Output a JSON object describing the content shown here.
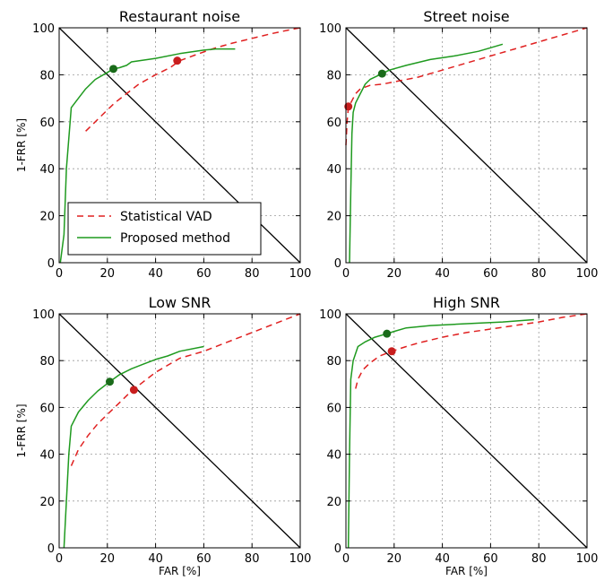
{
  "colors": {
    "statistical": "#e02020",
    "proposed": "#1f9a1f",
    "proposed_marker": "#1a6b1a",
    "statistical_marker": "#c81e1e",
    "diagonal": "#000000",
    "grid": "#9a9a9a"
  },
  "legend": {
    "location": "lower-left",
    "in_panel": 0,
    "entries": [
      "Statistical VAD",
      "Proposed method"
    ]
  },
  "chart_data": [
    {
      "type": "line",
      "title": "Restaurant noise",
      "xlabel": "",
      "ylabel": "1-FRR [%]",
      "xlim": [
        0,
        100
      ],
      "ylim": [
        0,
        100
      ],
      "xticks": [
        "0",
        "20",
        "40",
        "60",
        "80",
        "100"
      ],
      "yticks": [
        "0",
        "20",
        "40",
        "60",
        "80",
        "100"
      ],
      "grid": true,
      "series": [
        {
          "name": "Statistical VAD",
          "style": "dashed",
          "x": [
            11,
            14,
            18,
            23,
            28,
            33,
            40,
            46,
            50,
            58,
            65,
            72,
            80,
            88,
            95,
            100
          ],
          "y": [
            56,
            59,
            63,
            68,
            72,
            76,
            80,
            83,
            86,
            89,
            91.5,
            93.5,
            95.5,
            97.5,
            99,
            100
          ],
          "marker": {
            "x": 49,
            "y": 86
          }
        },
        {
          "name": "Proposed method",
          "style": "solid",
          "x": [
            0.5,
            2,
            3,
            5,
            8,
            11,
            15,
            20,
            22.5,
            25,
            28,
            30,
            40,
            50,
            60,
            65,
            73
          ],
          "y": [
            0,
            12,
            40,
            66,
            70,
            74,
            78,
            81,
            82.5,
            83,
            84,
            85.5,
            87,
            89,
            90.5,
            91,
            91
          ]
        }
      ],
      "markers": [
        {
          "series": "Proposed method",
          "x": 22.5,
          "y": 82.5
        }
      ]
    },
    {
      "type": "line",
      "title": "Street noise",
      "xlabel": "",
      "ylabel": "",
      "xlim": [
        0,
        100
      ],
      "ylim": [
        0,
        100
      ],
      "xticks": [
        "0",
        "20",
        "40",
        "60",
        "80",
        "100"
      ],
      "yticks": [
        "0",
        "20",
        "40",
        "60",
        "80",
        "100"
      ],
      "grid": true,
      "series": [
        {
          "name": "Statistical VAD",
          "style": "dashed",
          "x": [
            0,
            0.5,
            1,
            2,
            4,
            6,
            10,
            15,
            20,
            30,
            40,
            50,
            60,
            70,
            80,
            90,
            100
          ],
          "y": [
            50,
            60,
            66,
            68,
            72,
            74,
            75.5,
            76,
            77,
            79,
            82,
            85,
            88,
            91,
            94,
            97,
            100
          ],
          "marker": {
            "x": 1,
            "y": 66.5
          }
        },
        {
          "name": "Proposed method",
          "style": "solid",
          "x": [
            1.5,
            2,
            2.5,
            3,
            4,
            6,
            8,
            10,
            13,
            15,
            18,
            25,
            35,
            45,
            55,
            65
          ],
          "y": [
            0,
            30,
            55,
            64,
            68,
            72,
            76,
            78,
            79.5,
            80.5,
            82,
            84,
            86.5,
            88,
            90,
            93
          ]
        }
      ],
      "markers": [
        {
          "series": "Proposed method",
          "x": 15,
          "y": 80.5
        }
      ]
    },
    {
      "type": "line",
      "title": "Low SNR",
      "xlabel": "FAR [%]",
      "ylabel": "1-FRR [%]",
      "xlim": [
        0,
        100
      ],
      "ylim": [
        0,
        100
      ],
      "xticks": [
        "0",
        "20",
        "40",
        "60",
        "80",
        "100"
      ],
      "yticks": [
        "0",
        "20",
        "40",
        "60",
        "80",
        "100"
      ],
      "grid": true,
      "series": [
        {
          "name": "Statistical VAD",
          "style": "dashed",
          "x": [
            5,
            8,
            12,
            16,
            20,
            25,
            30,
            35,
            40,
            45,
            50,
            60,
            70,
            80,
            90,
            100
          ],
          "y": [
            35,
            42,
            48,
            53,
            57,
            62,
            67,
            71,
            75,
            78,
            81,
            84,
            88,
            92,
            96,
            100
          ],
          "marker": {
            "x": 31,
            "y": 67.5
          }
        },
        {
          "name": "Proposed method",
          "style": "solid",
          "x": [
            2,
            3,
            4,
            5,
            8,
            12,
            16,
            21,
            25,
            30,
            35,
            40,
            45,
            50,
            60
          ],
          "y": [
            0,
            20,
            40,
            52,
            58,
            63,
            67,
            71,
            74,
            76.5,
            78.5,
            80.5,
            82,
            84,
            86
          ]
        }
      ],
      "markers": [
        {
          "series": "Proposed method",
          "x": 21,
          "y": 71
        }
      ]
    },
    {
      "type": "line",
      "title": "High SNR",
      "xlabel": "FAR [%]",
      "ylabel": "",
      "xlim": [
        0,
        100
      ],
      "ylim": [
        0,
        100
      ],
      "xticks": [
        "0",
        "20",
        "40",
        "60",
        "80",
        "100"
      ],
      "yticks": [
        "0",
        "20",
        "40",
        "60",
        "80",
        "100"
      ],
      "grid": true,
      "series": [
        {
          "name": "Statistical VAD",
          "style": "dashed",
          "x": [
            4,
            5,
            7,
            10,
            14,
            19,
            25,
            30,
            40,
            50,
            60,
            70,
            80,
            90,
            100
          ],
          "y": [
            68,
            72,
            76,
            79,
            82,
            84,
            86,
            87.5,
            90,
            92,
            93.5,
            95,
            96.5,
            98.5,
            100
          ],
          "marker": {
            "x": 19,
            "y": 84
          }
        },
        {
          "name": "Proposed method",
          "style": "solid",
          "x": [
            1,
            1.5,
            2,
            3,
            5,
            8,
            12,
            17,
            20,
            25,
            35,
            45,
            55,
            65,
            78
          ],
          "y": [
            0,
            40,
            72,
            80,
            86,
            88,
            90,
            91.5,
            92.5,
            94,
            95,
            95.5,
            96,
            96.5,
            97.5
          ]
        }
      ],
      "markers": [
        {
          "series": "Proposed method",
          "x": 17,
          "y": 91.5
        }
      ]
    }
  ]
}
